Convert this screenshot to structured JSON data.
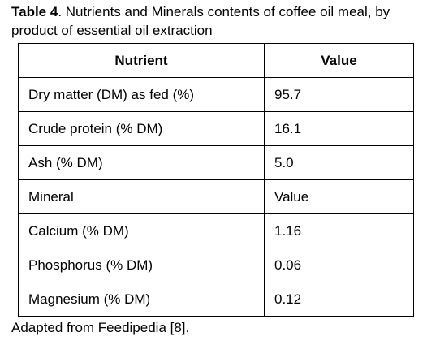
{
  "caption": {
    "label": "Table 4",
    "text": ". Nutrients and Minerals contents of coffee oil meal, by product of essential oil extraction"
  },
  "table": {
    "header": [
      "Nutrient",
      "Value"
    ],
    "rows": [
      [
        "Dry matter (DM) as fed (%)",
        "95.7"
      ],
      [
        "Crude protein (% DM)",
        "16.1"
      ],
      [
        "Ash (% DM)",
        "5.0"
      ],
      [
        "Mineral",
        "Value"
      ],
      [
        "Calcium (% DM)",
        "1.16"
      ],
      [
        "Phosphorus (% DM)",
        "0.06"
      ],
      [
        "Magnesium (% DM)",
        "0.12"
      ]
    ]
  },
  "footnote": "Adapted from Feedipedia [8]."
}
